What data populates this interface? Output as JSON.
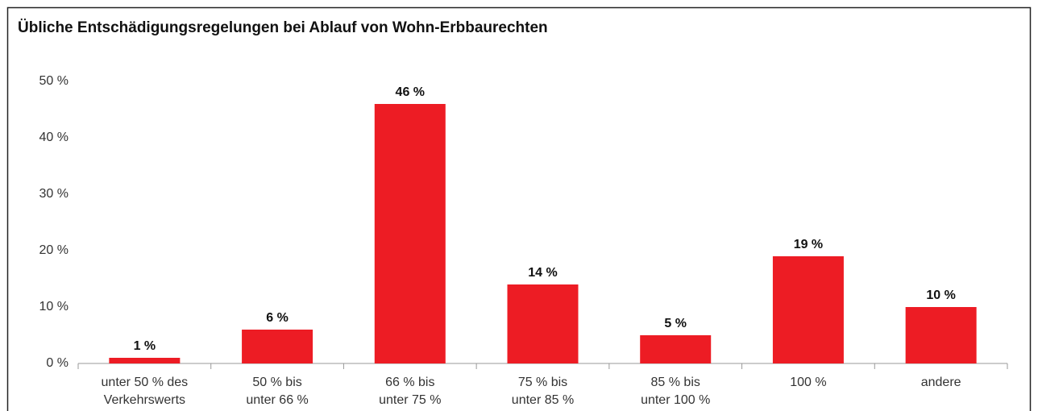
{
  "chart_data": {
    "type": "bar",
    "title": "Übliche Entschädigungsregelungen bei Ablauf von Wohn-Erbbaurechten",
    "categories": [
      [
        "unter 50 % des",
        "Verkehrswerts"
      ],
      [
        "50 % bis",
        "unter 66 %"
      ],
      [
        "66 % bis",
        "unter 75 %"
      ],
      [
        "75 % bis",
        "unter 85 %"
      ],
      [
        "85 % bis",
        "unter 100 %"
      ],
      [
        "100 %"
      ],
      [
        "andere"
      ]
    ],
    "values": [
      1,
      6,
      46,
      14,
      5,
      19,
      10
    ],
    "value_labels": [
      "1 %",
      "6 %",
      "46 %",
      "14 %",
      "5 %",
      "19 %",
      "10 %"
    ],
    "color": "#ed1c24",
    "ylim": [
      0,
      50
    ],
    "yticks": [
      {
        "value": 0,
        "label": "0 %"
      },
      {
        "value": 10,
        "label": "10 %"
      },
      {
        "value": 20,
        "label": "20 %"
      },
      {
        "value": 30,
        "label": "30 %"
      },
      {
        "value": 40,
        "label": "40 %"
      },
      {
        "value": 50,
        "label": "50 %"
      }
    ],
    "grid": false
  }
}
